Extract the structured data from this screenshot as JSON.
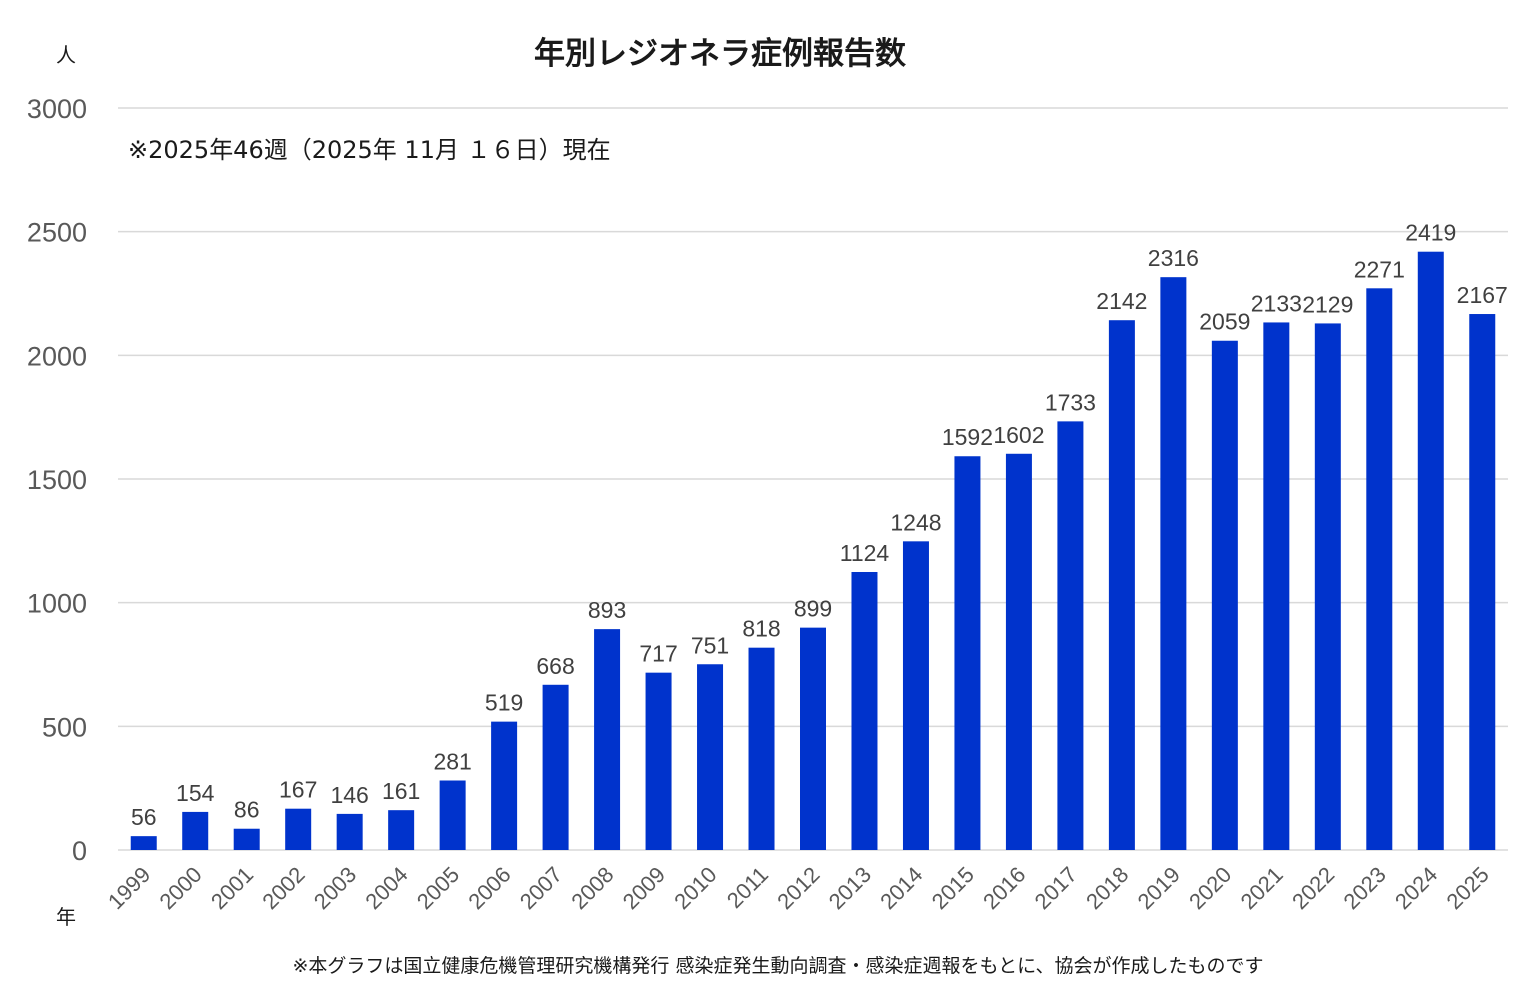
{
  "chart_data": {
    "type": "bar",
    "title": "年別レジオネラ症例報告数",
    "subtitle": "※2025年46週（2025年 11月 １６日）現在",
    "ylabel": "人",
    "xlabel": "年",
    "ylim": [
      0,
      3000
    ],
    "yticks": [
      0,
      500,
      1000,
      1500,
      2000,
      2500,
      3000
    ],
    "grid": true,
    "bar_color": "#0033cc",
    "categories": [
      "1999",
      "2000",
      "2001",
      "2002",
      "2003",
      "2004",
      "2005",
      "2006",
      "2007",
      "2008",
      "2009",
      "2010",
      "2011",
      "2012",
      "2013",
      "2014",
      "2015",
      "2016",
      "2017",
      "2018",
      "2019",
      "2020",
      "2021",
      "2022",
      "2023",
      "2024",
      "2025"
    ],
    "values": [
      56,
      154,
      86,
      167,
      146,
      161,
      281,
      519,
      668,
      893,
      717,
      751,
      818,
      899,
      1124,
      1248,
      1592,
      1602,
      1733,
      2142,
      2316,
      2059,
      2133,
      2129,
      2271,
      2419,
      2167
    ],
    "footnote": "※本グラフは国立健康危機管理研究機構発行 感染症発生動向調査・感染症週報をもとに、協会が作成したものです"
  }
}
